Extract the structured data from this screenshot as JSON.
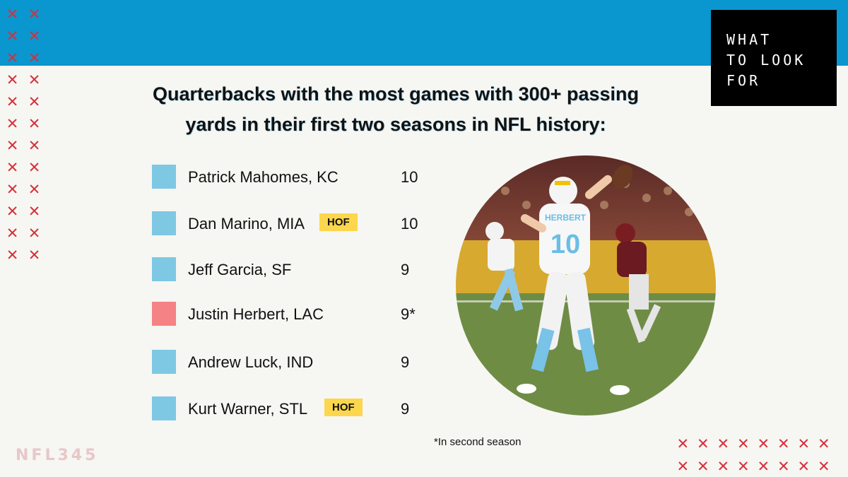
{
  "brand": {
    "lines": [
      "WHAT",
      "TO LOOK",
      "FOR"
    ]
  },
  "headline": {
    "line1": "Quarterbacks with the most games with 300+ passing",
    "line2": "yards in their first two seasons in NFL history:"
  },
  "rows": [
    {
      "name": "Patrick Mahomes, KC",
      "value": "10",
      "badge": "",
      "color": "#7ec8e3"
    },
    {
      "name": "Dan Marino, MIA",
      "value": "10",
      "badge": "HOF",
      "color": "#7ec8e3"
    },
    {
      "name": "Jeff Garcia, SF",
      "value": "9",
      "badge": "",
      "color": "#7ec8e3"
    },
    {
      "name": "Justin Herbert, LAC",
      "value": "9*",
      "badge": "",
      "color": "#f58284"
    },
    {
      "name": "Andrew Luck, IND",
      "value": "9",
      "badge": "",
      "color": "#7ec8e3"
    },
    {
      "name": "Kurt Warner, STL",
      "value": "9",
      "badge": "HOF",
      "color": "#7ec8e3"
    }
  ],
  "footnote": "*In second season",
  "watermark": "NFL345",
  "photo": {
    "jersey_name": "HERBERT",
    "jersey_number": "10"
  },
  "colors": {
    "band": "#0a96cf",
    "brand_box": "#000000",
    "x_marks": "#d6303a",
    "badge": "#fcd74d"
  },
  "icons": {
    "decor": "x-mark-icon"
  }
}
